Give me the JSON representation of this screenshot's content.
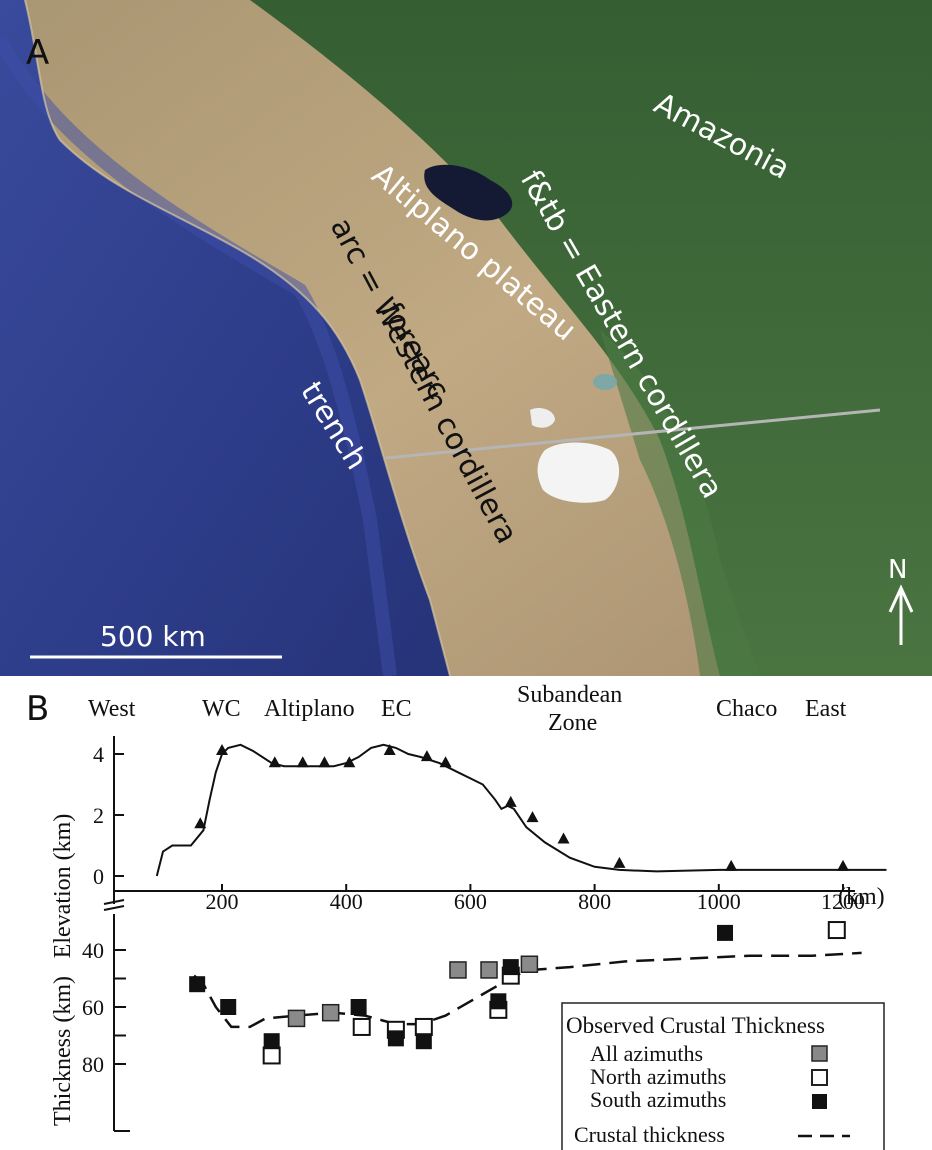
{
  "panel_a": {
    "panel_label": "A",
    "labels": {
      "amazonia": "Amazonia",
      "altiplano": "Altiplano plateau",
      "ftb": "f&tb = Eastern cordillera",
      "arc": "arc = Western cordillera",
      "forearc": "forearc",
      "trench": "trench"
    },
    "scale_bar": "500 km",
    "north": "N",
    "colors": {
      "ocean": "#2f3f8e",
      "land": "#b7a07a",
      "forest": "#3e6a3a",
      "lake": "#141a33",
      "salar": "#f2f2f2",
      "profile_line": "#b5b5b5"
    }
  },
  "panel_b": {
    "panel_label": "B",
    "regions": [
      "West",
      "WC",
      "Altiplano",
      "EC",
      "Subandean",
      "Zone",
      "Chaco",
      "East"
    ],
    "x_unit": "(km)",
    "elevation_axis_label": "Elevation (km)",
    "thickness_axis_label": "Thickness (km)",
    "legend": {
      "title": "Observed Crustal Thickness",
      "all": "All azimuths",
      "north": "North azimuths",
      "south": "South azimuths",
      "line": "Crustal thickness"
    }
  },
  "chart_data": [
    {
      "type": "line",
      "ylabel": "Elevation (km)",
      "xlabel": "(km)",
      "x_ticks": [
        200,
        400,
        600,
        800,
        1000,
        1200
      ],
      "y_ticks": [
        0,
        2,
        4
      ],
      "xlim": [
        50,
        1300
      ],
      "ylim": [
        -0.3,
        4.8
      ],
      "series": [
        {
          "x": [
            95,
            105,
            120,
            150,
            170,
            180,
            190,
            200,
            210,
            230,
            250,
            280,
            300,
            340,
            380,
            400,
            420,
            440,
            460,
            480,
            500,
            520,
            550,
            580,
            600,
            620,
            640,
            650,
            660,
            670,
            690,
            720,
            760,
            800,
            840,
            900,
            1000,
            1100,
            1200,
            1270
          ],
          "y": [
            0,
            0.8,
            1.0,
            1.0,
            1.5,
            2.5,
            3.4,
            4.0,
            4.2,
            4.3,
            4.1,
            3.7,
            3.6,
            3.6,
            3.6,
            3.7,
            3.9,
            4.2,
            4.3,
            4.2,
            4.0,
            3.9,
            3.7,
            3.4,
            3.2,
            3.0,
            2.5,
            2.2,
            2.3,
            2.2,
            1.6,
            1.1,
            0.6,
            0.3,
            0.2,
            0.15,
            0.2,
            0.2,
            0.2,
            0.2
          ]
        },
        {
          "name": "stations",
          "x": [
            165,
            200,
            285,
            330,
            365,
            405,
            470,
            530,
            560,
            665,
            700,
            750,
            840,
            1020,
            1200
          ],
          "y": [
            1.6,
            4.0,
            3.6,
            3.6,
            3.6,
            3.6,
            4.0,
            3.8,
            3.6,
            2.3,
            1.8,
            1.1,
            0.3,
            0.2,
            0.2
          ]
        }
      ]
    },
    {
      "type": "scatter",
      "ylabel": "Thickness (km)",
      "y_ticks": [
        40,
        60,
        80
      ],
      "ylim": [
        30,
        93
      ],
      "series": [
        {
          "name": "All azimuths",
          "x": [
            320,
            375,
            580,
            630,
            695
          ],
          "y": [
            64,
            62,
            47,
            47,
            45
          ]
        },
        {
          "name": "North azimuths",
          "x": [
            280,
            425,
            480,
            525,
            645,
            665,
            1190
          ],
          "y": [
            77,
            67,
            68,
            67,
            61,
            49,
            33
          ]
        },
        {
          "name": "South azimuths",
          "x": [
            160,
            210,
            280,
            420,
            480,
            525,
            645,
            665,
            1010
          ],
          "y": [
            52,
            60,
            72,
            60,
            71,
            72,
            58,
            46,
            34
          ]
        },
        {
          "name": "Crustal thickness",
          "x": [
            155,
            170,
            190,
            215,
            245,
            270,
            320,
            380,
            430,
            480,
            520,
            560,
            600,
            640,
            670,
            700,
            760,
            850,
            950,
            1050,
            1150,
            1230
          ],
          "y": [
            49,
            52,
            60,
            67,
            67,
            64,
            63,
            62,
            63,
            66,
            66,
            63,
            58,
            53,
            49,
            47,
            46,
            44,
            43,
            42,
            42,
            41
          ]
        }
      ]
    }
  ]
}
